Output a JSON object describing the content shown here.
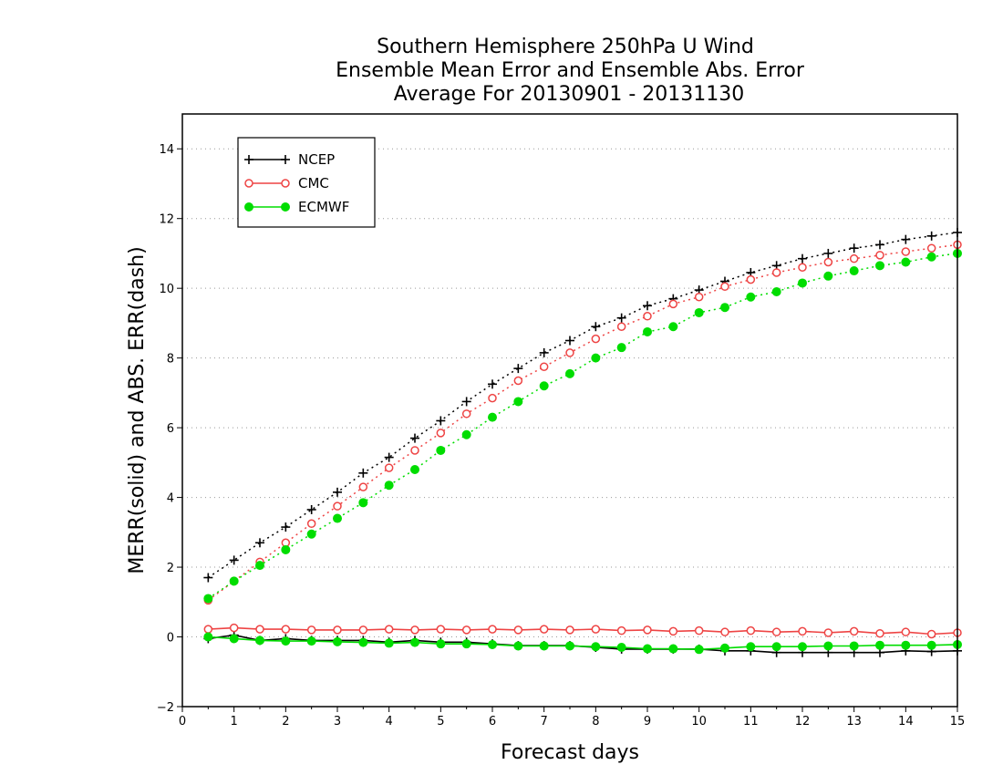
{
  "chart_data": {
    "type": "line",
    "title": [
      "Southern Hemisphere 250hPa U Wind",
      "Ensemble Mean Error and Ensemble Abs. Error",
      "Average For 20130901 - 20131130"
    ],
    "xlabel": "Forecast days",
    "ylabel": "MERR(solid) and ABS. ERR(dash)",
    "xlim": [
      0,
      15
    ],
    "ylim": [
      -2,
      15
    ],
    "xticks": [
      0,
      1,
      2,
      3,
      4,
      5,
      6,
      7,
      8,
      9,
      10,
      11,
      12,
      13,
      14,
      15
    ],
    "yticks": [
      -2,
      0,
      2,
      4,
      6,
      8,
      10,
      12,
      14
    ],
    "grid": "horizontal-dotted",
    "legend_position": "top-left",
    "x": [
      0.5,
      1,
      1.5,
      2,
      2.5,
      3,
      3.5,
      4,
      4.5,
      5,
      5.5,
      6,
      6.5,
      7,
      7.5,
      8,
      8.5,
      9,
      9.5,
      10,
      10.5,
      11,
      11.5,
      12,
      12.5,
      13,
      13.5,
      14,
      14.5,
      15
    ],
    "series": [
      {
        "name": "NCEP",
        "color": "#000000",
        "marker": "plus",
        "merr": [
          -0.05,
          0.05,
          -0.1,
          -0.05,
          -0.1,
          -0.1,
          -0.1,
          -0.15,
          -0.1,
          -0.15,
          -0.15,
          -0.2,
          -0.25,
          -0.25,
          -0.25,
          -0.3,
          -0.35,
          -0.35,
          -0.35,
          -0.35,
          -0.4,
          -0.4,
          -0.45,
          -0.45,
          -0.45,
          -0.45,
          -0.45,
          -0.4,
          -0.42,
          -0.4
        ],
        "abs_err": [
          1.7,
          2.2,
          2.7,
          3.15,
          3.65,
          4.15,
          4.7,
          5.15,
          5.7,
          6.2,
          6.75,
          7.25,
          7.7,
          8.15,
          8.5,
          8.9,
          9.15,
          9.5,
          9.7,
          9.95,
          10.2,
          10.45,
          10.65,
          10.85,
          11.0,
          11.15,
          11.25,
          11.4,
          11.5,
          11.6
        ]
      },
      {
        "name": "CMC",
        "color": "#ee4444",
        "marker": "open-circle",
        "merr": [
          0.22,
          0.26,
          0.22,
          0.22,
          0.2,
          0.2,
          0.2,
          0.22,
          0.2,
          0.22,
          0.2,
          0.22,
          0.2,
          0.22,
          0.2,
          0.22,
          0.18,
          0.2,
          0.16,
          0.18,
          0.14,
          0.18,
          0.14,
          0.16,
          0.12,
          0.16,
          0.1,
          0.14,
          0.08,
          0.12
        ],
        "abs_err": [
          1.05,
          1.6,
          2.15,
          2.7,
          3.25,
          3.75,
          4.3,
          4.85,
          5.35,
          5.85,
          6.4,
          6.85,
          7.35,
          7.75,
          8.15,
          8.55,
          8.9,
          9.2,
          9.55,
          9.75,
          10.05,
          10.25,
          10.45,
          10.6,
          10.75,
          10.85,
          10.95,
          11.05,
          11.15,
          11.25
        ]
      },
      {
        "name": "ECMWF",
        "color": "#00dd00",
        "marker": "filled-circle",
        "merr": [
          0.0,
          -0.05,
          -0.1,
          -0.12,
          -0.12,
          -0.14,
          -0.16,
          -0.18,
          -0.16,
          -0.2,
          -0.2,
          -0.22,
          -0.26,
          -0.26,
          -0.26,
          -0.28,
          -0.3,
          -0.34,
          -0.34,
          -0.36,
          -0.32,
          -0.28,
          -0.28,
          -0.28,
          -0.26,
          -0.26,
          -0.24,
          -0.24,
          -0.24,
          -0.22
        ],
        "abs_err": [
          1.1,
          1.6,
          2.05,
          2.5,
          2.95,
          3.4,
          3.85,
          4.35,
          4.8,
          5.35,
          5.8,
          6.3,
          6.75,
          7.2,
          7.55,
          8.0,
          8.3,
          8.75,
          8.9,
          9.3,
          9.45,
          9.75,
          9.9,
          10.15,
          10.35,
          10.5,
          10.65,
          10.75,
          10.9,
          11.0
        ]
      }
    ]
  }
}
